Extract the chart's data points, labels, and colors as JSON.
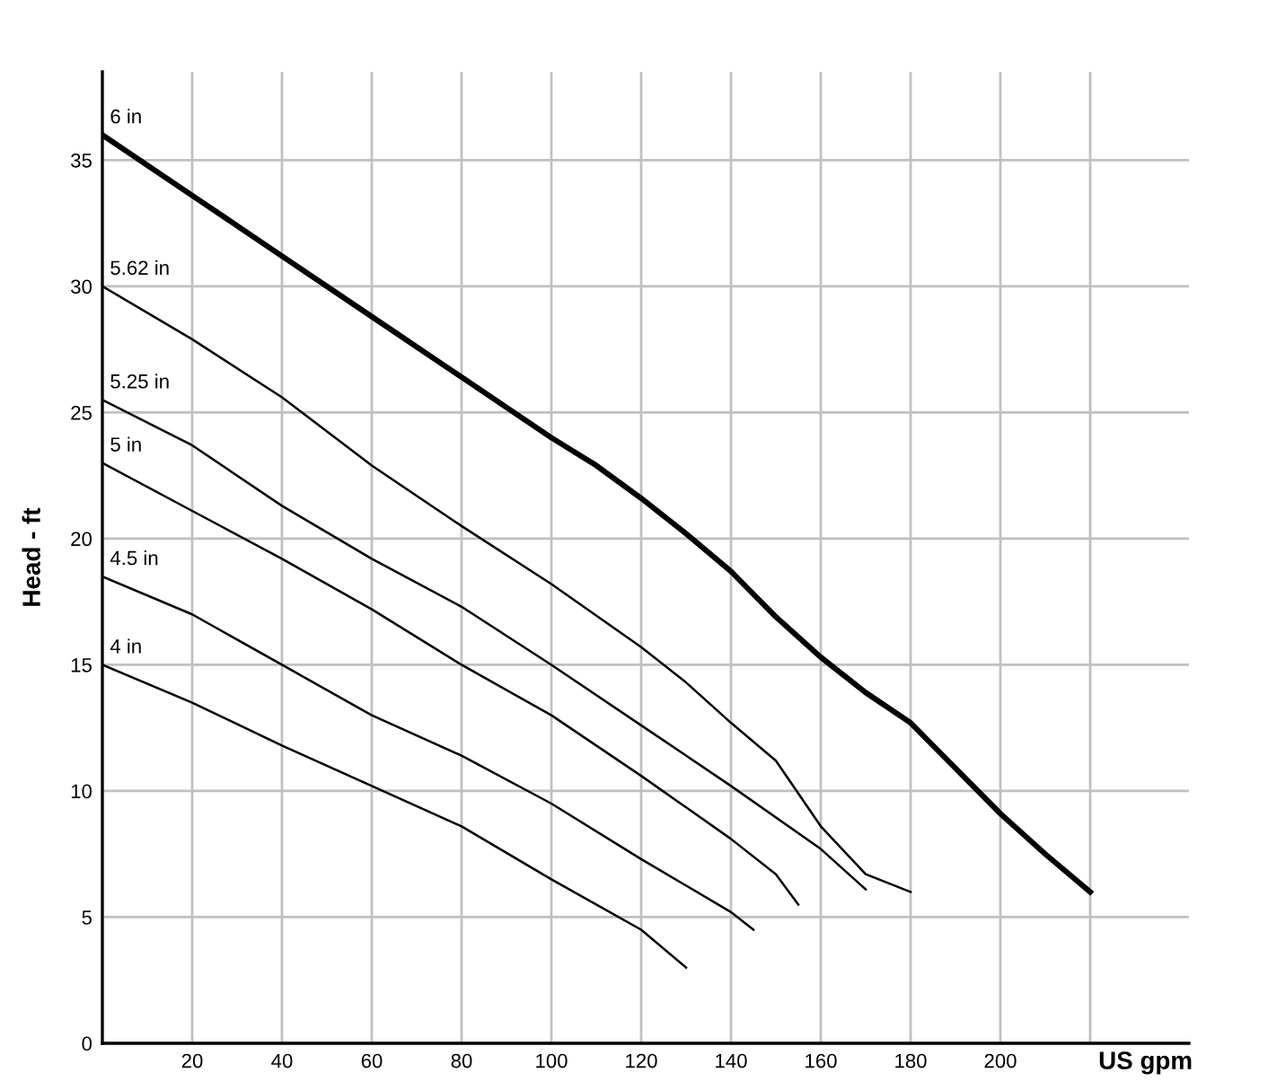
{
  "chart_data": {
    "type": "line",
    "xlabel": "US gpm",
    "ylabel": "Head - ft",
    "xlim": [
      0,
      242
    ],
    "ylim": [
      0,
      38.5
    ],
    "xticks": [
      20,
      40,
      60,
      80,
      100,
      120,
      140,
      160,
      180,
      200,
      {
        "value": 220,
        "label": null
      }
    ],
    "yticks": [
      0,
      5,
      10,
      15,
      20,
      25,
      30,
      35
    ],
    "grid": true,
    "legend": false,
    "marker": "none",
    "line_style": "solid",
    "series": [
      {
        "name": "6 in",
        "color": "#000000",
        "x": [
          0,
          20,
          40,
          60,
          80,
          100,
          110,
          120,
          130,
          140,
          150,
          160,
          170,
          180,
          190,
          200,
          210,
          220
        ],
        "values": [
          36,
          33.6,
          31.2,
          28.8,
          26.4,
          24.0,
          22.9,
          21.6,
          20.2,
          18.7,
          16.9,
          15.3,
          13.9,
          12.7,
          10.9,
          9.1,
          7.5,
          6.0
        ]
      },
      {
        "name": "5.62 in",
        "color": "#000000",
        "x": [
          0,
          20,
          40,
          60,
          80,
          100,
          120,
          130,
          140,
          150,
          160,
          170,
          180
        ],
        "values": [
          30,
          27.9,
          25.6,
          22.9,
          20.5,
          18.2,
          15.7,
          14.3,
          12.7,
          11.2,
          8.6,
          6.7,
          6.0
        ]
      },
      {
        "name": "5.25 in",
        "color": "#000000",
        "x": [
          0,
          20,
          40,
          60,
          80,
          100,
          120,
          140,
          160,
          170
        ],
        "values": [
          25.5,
          23.7,
          21.3,
          19.2,
          17.3,
          15.0,
          12.6,
          10.2,
          7.7,
          6.1
        ]
      },
      {
        "name": "5 in",
        "color": "#000000",
        "x": [
          0,
          20,
          40,
          60,
          80,
          100,
          120,
          140,
          150,
          155
        ],
        "values": [
          23,
          21.1,
          19.2,
          17.2,
          15.0,
          13.0,
          10.6,
          8.1,
          6.7,
          5.5
        ]
      },
      {
        "name": "4.5 in",
        "color": "#000000",
        "x": [
          0,
          20,
          40,
          60,
          80,
          100,
          120,
          140,
          145
        ],
        "values": [
          18.5,
          17.0,
          15.0,
          13.0,
          11.4,
          9.5,
          7.3,
          5.2,
          4.5
        ]
      },
      {
        "name": "4 in",
        "color": "#000000",
        "x": [
          0,
          20,
          40,
          60,
          80,
          100,
          120,
          130
        ],
        "values": [
          15.0,
          13.5,
          11.8,
          10.2,
          8.6,
          6.5,
          4.5,
          3.0
        ]
      }
    ]
  }
}
